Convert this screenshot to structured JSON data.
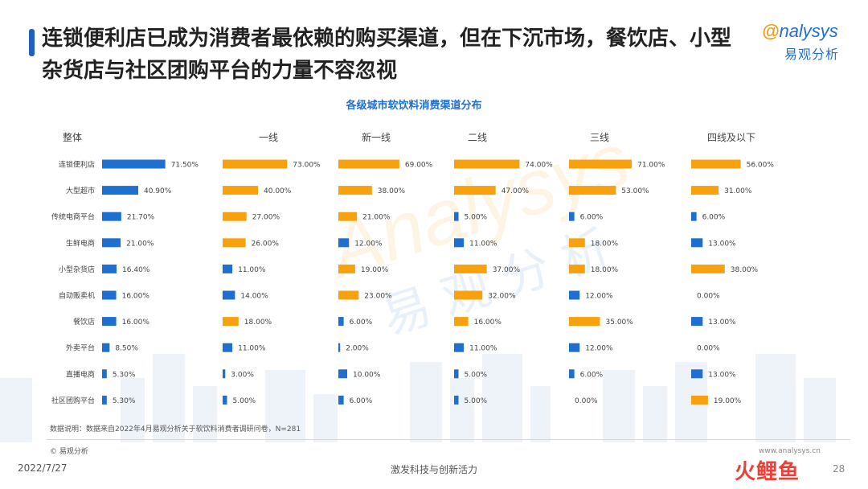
{
  "page": {
    "headline": "连锁便利店已成为消费者最依赖的购买渠道，但在下沉市场，餐饮店、小型杂货店与社区团购平台的力量不容忽视",
    "logo_en": "nalysys",
    "logo_cn": "易观分析",
    "watermark_en": "Analysys",
    "watermark_cn": "易观分析",
    "source_note": "数据说明：数据来自2022年4月易观分析关于软饮料消费者调研问卷，N=281",
    "copyright": "© 易观分析",
    "website": "www.analysys.cn",
    "date": "2022/7/27",
    "slogan": "激发科技与创新活力",
    "page_number": "28",
    "stamp": "火鲤鱼"
  },
  "colors": {
    "blue": "#1f6fd1",
    "orange": "#f7a10f",
    "title_blue": "#1f6fd1",
    "accent_bar": "#1f5fbf"
  },
  "chart_data": {
    "type": "bar",
    "orientation": "horizontal",
    "title": "各级城市软饮料消费渠道分布",
    "categories": [
      "连锁便利店",
      "大型超市",
      "传统电商平台",
      "生鲜电商",
      "小型杂货店",
      "自动贩卖机",
      "餐饮店",
      "外卖平台",
      "直播电商",
      "社区团购平台"
    ],
    "unit": "%",
    "series": [
      {
        "name": "整体",
        "color": "#1f6fd1",
        "values": [
          71.5,
          40.9,
          21.7,
          21.0,
          16.4,
          16.0,
          16.0,
          8.5,
          5.3,
          5.3
        ],
        "bar_colors": [
          "#1f6fd1",
          "#1f6fd1",
          "#1f6fd1",
          "#1f6fd1",
          "#1f6fd1",
          "#1f6fd1",
          "#1f6fd1",
          "#1f6fd1",
          "#1f6fd1",
          "#1f6fd1"
        ]
      },
      {
        "name": "一线",
        "values": [
          73.0,
          40.0,
          27.0,
          26.0,
          11.0,
          14.0,
          18.0,
          11.0,
          3.0,
          5.0
        ],
        "bar_colors": [
          "#f7a10f",
          "#f7a10f",
          "#f7a10f",
          "#f7a10f",
          "#1f6fd1",
          "#1f6fd1",
          "#f7a10f",
          "#1f6fd1",
          "#1f6fd1",
          "#1f6fd1"
        ]
      },
      {
        "name": "新一线",
        "values": [
          69.0,
          38.0,
          21.0,
          12.0,
          19.0,
          23.0,
          6.0,
          2.0,
          10.0,
          6.0
        ],
        "bar_colors": [
          "#f7a10f",
          "#f7a10f",
          "#f7a10f",
          "#1f6fd1",
          "#f7a10f",
          "#f7a10f",
          "#1f6fd1",
          "#1f6fd1",
          "#1f6fd1",
          "#1f6fd1"
        ]
      },
      {
        "name": "二线",
        "values": [
          74.0,
          47.0,
          5.0,
          11.0,
          37.0,
          32.0,
          16.0,
          11.0,
          5.0,
          5.0
        ],
        "bar_colors": [
          "#f7a10f",
          "#f7a10f",
          "#1f6fd1",
          "#1f6fd1",
          "#f7a10f",
          "#f7a10f",
          "#f7a10f",
          "#1f6fd1",
          "#1f6fd1",
          "#1f6fd1"
        ]
      },
      {
        "name": "三线",
        "values": [
          71.0,
          53.0,
          6.0,
          18.0,
          18.0,
          12.0,
          35.0,
          12.0,
          6.0,
          0.0
        ],
        "bar_colors": [
          "#f7a10f",
          "#f7a10f",
          "#1f6fd1",
          "#f7a10f",
          "#f7a10f",
          "#1f6fd1",
          "#f7a10f",
          "#1f6fd1",
          "#1f6fd1",
          "#1f6fd1"
        ]
      },
      {
        "name": "四线及以下",
        "values": [
          56.0,
          31.0,
          6.0,
          13.0,
          38.0,
          0.0,
          13.0,
          0.0,
          13.0,
          19.0
        ],
        "bar_colors": [
          "#f7a10f",
          "#f7a10f",
          "#1f6fd1",
          "#1f6fd1",
          "#f7a10f",
          "#1f6fd1",
          "#1f6fd1",
          "#1f6fd1",
          "#1f6fd1",
          "#f7a10f"
        ]
      }
    ],
    "value_labels": [
      [
        "71.50%",
        "40.90%",
        "21.70%",
        "21.00%",
        "16.40%",
        "16.00%",
        "16.00%",
        "8.50%",
        "5.30%",
        "5.30%"
      ],
      [
        "73.00%",
        "40.00%",
        "27.00%",
        "26.00%",
        "11.00%",
        "14.00%",
        "18.00%",
        "11.00%",
        "3.00%",
        "5.00%"
      ],
      [
        "69.00%",
        "38.00%",
        "21.00%",
        "12.00%",
        "19.00%",
        "23.00%",
        "6.00%",
        "2.00%",
        "10.00%",
        "6.00%"
      ],
      [
        "74.00%",
        "47.00%",
        "5.00%",
        "11.00%",
        "37.00%",
        "32.00%",
        "16.00%",
        "11.00%",
        "5.00%",
        "5.00%"
      ],
      [
        "71.00%",
        "53.00%",
        "6.00%",
        "18.00%",
        "18.00%",
        "12.00%",
        "35.00%",
        "12.00%",
        "6.00%",
        "0.00%"
      ],
      [
        "56.00%",
        "31.00%",
        "6.00%",
        "13.00%",
        "38.00%",
        "0.00%",
        "13.00%",
        "0.00%",
        "13.00%",
        "19.00%"
      ]
    ],
    "xlim": [
      0,
      100
    ],
    "grid": false,
    "legend": "none"
  }
}
